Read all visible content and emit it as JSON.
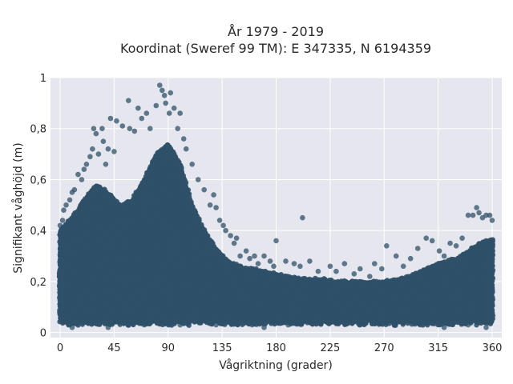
{
  "chart_data": {
    "type": "scatter",
    "title_line1": "År 1979 - 2019",
    "title_line2": "Koordinat (Sweref 99 TM): E 347335, N 6194359",
    "xlabel": "Vågriktning (grader)",
    "ylabel": "Signifikant våghöjd (m)",
    "xlim": [
      -8,
      368
    ],
    "ylim": [
      -0.02,
      1.0
    ],
    "xticks": [
      0,
      45,
      90,
      135,
      180,
      225,
      270,
      315,
      360
    ],
    "xtick_labels": [
      "0",
      "45",
      "90",
      "135",
      "180",
      "225",
      "270",
      "315",
      "360"
    ],
    "yticks": [
      0,
      0.2,
      0.4,
      0.6,
      0.8,
      1
    ],
    "ytick_labels": [
      "0",
      "0,2",
      "0,4",
      "0,6",
      "0,8",
      "1"
    ],
    "grid": true,
    "marker_color": "#2f5068",
    "upper_envelope": {
      "x": [
        0,
        10,
        20,
        30,
        40,
        50,
        60,
        70,
        80,
        90,
        100,
        110,
        120,
        130,
        140,
        150,
        160,
        170,
        180,
        190,
        200,
        210,
        220,
        230,
        240,
        250,
        260,
        270,
        280,
        290,
        300,
        310,
        320,
        330,
        340,
        350,
        360
      ],
      "y": [
        0.4,
        0.45,
        0.52,
        0.58,
        0.55,
        0.5,
        0.52,
        0.6,
        0.7,
        0.74,
        0.66,
        0.5,
        0.4,
        0.33,
        0.28,
        0.26,
        0.25,
        0.24,
        0.23,
        0.22,
        0.21,
        0.21,
        0.21,
        0.2,
        0.2,
        0.2,
        0.2,
        0.2,
        0.21,
        0.22,
        0.24,
        0.26,
        0.28,
        0.29,
        0.32,
        0.35,
        0.37
      ]
    },
    "points": [
      [
        83,
        0.97
      ],
      [
        85,
        0.95
      ],
      [
        87,
        0.93
      ],
      [
        92,
        0.94
      ],
      [
        88,
        0.9
      ],
      [
        80,
        0.89
      ],
      [
        95,
        0.88
      ],
      [
        91,
        0.86
      ],
      [
        100,
        0.86
      ],
      [
        57,
        0.91
      ],
      [
        65,
        0.88
      ],
      [
        72,
        0.86
      ],
      [
        42,
        0.84
      ],
      [
        47,
        0.83
      ],
      [
        52,
        0.81
      ],
      [
        58,
        0.8
      ],
      [
        62,
        0.79
      ],
      [
        35,
        0.8
      ],
      [
        28,
        0.8
      ],
      [
        30,
        0.78
      ],
      [
        36,
        0.75
      ],
      [
        40,
        0.72
      ],
      [
        45,
        0.71
      ],
      [
        68,
        0.84
      ],
      [
        75,
        0.8
      ],
      [
        98,
        0.8
      ],
      [
        103,
        0.76
      ],
      [
        105,
        0.72
      ],
      [
        110,
        0.66
      ],
      [
        115,
        0.6
      ],
      [
        120,
        0.56
      ],
      [
        125,
        0.5
      ],
      [
        130,
        0.49
      ],
      [
        128,
        0.54
      ],
      [
        133,
        0.44
      ],
      [
        136,
        0.42
      ],
      [
        138,
        0.4
      ],
      [
        142,
        0.38
      ],
      [
        145,
        0.35
      ],
      [
        147,
        0.37
      ],
      [
        150,
        0.3
      ],
      [
        155,
        0.32
      ],
      [
        158,
        0.29
      ],
      [
        162,
        0.3
      ],
      [
        165,
        0.27
      ],
      [
        170,
        0.3
      ],
      [
        175,
        0.28
      ],
      [
        178,
        0.26
      ],
      [
        180,
        0.36
      ],
      [
        202,
        0.45
      ],
      [
        188,
        0.28
      ],
      [
        195,
        0.27
      ],
      [
        200,
        0.26
      ],
      [
        208,
        0.28
      ],
      [
        215,
        0.24
      ],
      [
        225,
        0.26
      ],
      [
        230,
        0.24
      ],
      [
        237,
        0.27
      ],
      [
        245,
        0.23
      ],
      [
        250,
        0.25
      ],
      [
        258,
        0.22
      ],
      [
        262,
        0.27
      ],
      [
        268,
        0.25
      ],
      [
        272,
        0.34
      ],
      [
        280,
        0.3
      ],
      [
        286,
        0.26
      ],
      [
        292,
        0.29
      ],
      [
        298,
        0.33
      ],
      [
        305,
        0.37
      ],
      [
        310,
        0.36
      ],
      [
        316,
        0.32
      ],
      [
        320,
        0.3
      ],
      [
        325,
        0.35
      ],
      [
        330,
        0.34
      ],
      [
        335,
        0.37
      ],
      [
        340,
        0.46
      ],
      [
        344,
        0.46
      ],
      [
        347,
        0.49
      ],
      [
        349,
        0.47
      ],
      [
        352,
        0.45
      ],
      [
        355,
        0.46
      ],
      [
        358,
        0.46
      ],
      [
        360,
        0.44
      ],
      [
        5,
        0.5
      ],
      [
        3,
        0.48
      ],
      [
        8,
        0.52
      ],
      [
        12,
        0.56
      ],
      [
        15,
        0.62
      ],
      [
        18,
        0.6
      ],
      [
        22,
        0.66
      ],
      [
        25,
        0.69
      ],
      [
        27,
        0.72
      ],
      [
        32,
        0.7
      ],
      [
        38,
        0.66
      ],
      [
        20,
        0.64
      ],
      [
        10,
        0.55
      ],
      [
        2,
        0.44
      ],
      [
        0,
        0.42
      ],
      [
        150,
        0.04
      ],
      [
        160,
        0.03
      ],
      [
        170,
        0.02
      ],
      [
        190,
        0.03
      ],
      [
        210,
        0.04
      ],
      [
        250,
        0.03
      ],
      [
        280,
        0.04
      ],
      [
        300,
        0.03
      ],
      [
        320,
        0.02
      ],
      [
        340,
        0.03
      ],
      [
        355,
        0.02
      ],
      [
        10,
        0.02
      ],
      [
        40,
        0.02
      ],
      [
        70,
        0.03
      ],
      [
        100,
        0.03
      ],
      [
        130,
        0.03
      ]
    ]
  }
}
